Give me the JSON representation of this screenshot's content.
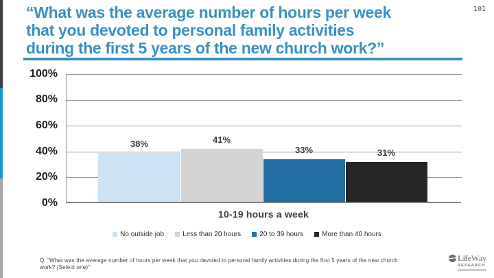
{
  "slide": {
    "page_number": "101",
    "title_lines": [
      "“What was the average number of hours per week",
      "that you devoted to personal family activities",
      "during the first 5 years of the new church work?”"
    ],
    "footnote": "Q. “What was the average number of hours per week that you devoted to personal family activities during the first 5 years of the new church work? (Select one)”",
    "logo": {
      "brand": "LifeWay",
      "sub": "RESEARCH"
    },
    "accent_color": "#3b90c2"
  },
  "chart_data": {
    "type": "bar",
    "title": "",
    "categories": [
      "10-19 hours a week"
    ],
    "series": [
      {
        "name": "No outside job",
        "values": [
          38
        ],
        "color": "#cde2f3"
      },
      {
        "name": "Less than 20 hours",
        "values": [
          41
        ],
        "color": "#d4d4d4"
      },
      {
        "name": "20 to 39 hours",
        "values": [
          33
        ],
        "color": "#2270a3"
      },
      {
        "name": "More than 40 hours",
        "values": [
          31
        ],
        "color": "#262626"
      }
    ],
    "value_suffix": "%",
    "xlabel": "",
    "ylabel": "",
    "ylim": [
      0,
      100
    ],
    "yticks": [
      "100%",
      "80%",
      "60%",
      "40%",
      "20%",
      "0%"
    ],
    "grid": true,
    "legend_position": "bottom"
  }
}
